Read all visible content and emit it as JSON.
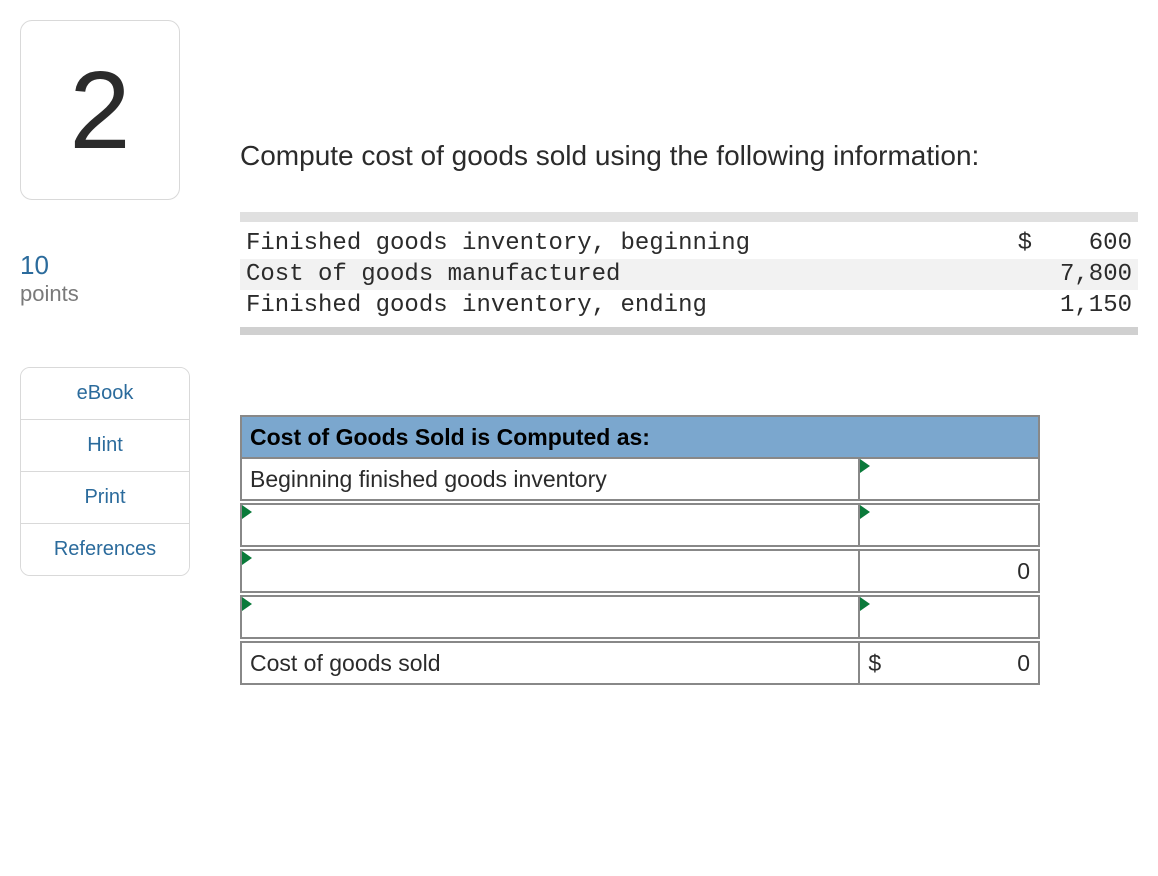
{
  "question": {
    "number": "2",
    "points_value": "10",
    "points_label": "points",
    "prompt": "Compute cost of goods sold using the following information:"
  },
  "links": {
    "ebook": "eBook",
    "hint": "Hint",
    "print": "Print",
    "references": "References"
  },
  "given_data": {
    "rows": [
      {
        "label": "Finished goods inventory, beginning",
        "currency": "$",
        "value": "600"
      },
      {
        "label": "Cost of goods manufactured",
        "currency": "",
        "value": "7,800"
      },
      {
        "label": "Finished goods inventory, ending",
        "currency": "",
        "value": "1,150"
      }
    ]
  },
  "answer": {
    "header": "Cost of Goods Sold is Computed as:",
    "rows": [
      {
        "desc": "Beginning finished goods inventory",
        "value": "",
        "desc_editable": false,
        "val_editable": true
      },
      {
        "desc": "",
        "value": "",
        "desc_editable": true,
        "val_editable": true
      },
      {
        "desc": "",
        "value": "0",
        "desc_editable": true,
        "val_editable": false
      },
      {
        "desc": "",
        "value": "",
        "desc_editable": true,
        "val_editable": true
      }
    ],
    "total": {
      "label": "Cost of goods sold",
      "currency": "$",
      "value": "0"
    }
  },
  "colors": {
    "header_bg": "#7ba7ce",
    "triangle": "#0a7a3a",
    "link": "#2b6b9c"
  }
}
